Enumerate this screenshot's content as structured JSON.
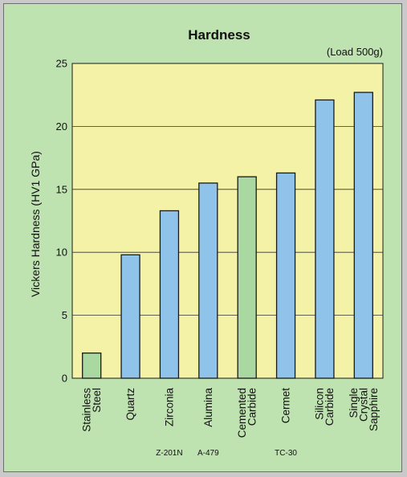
{
  "colors": {
    "background": "#bfe2b1",
    "plot_area": "#f3f2a6",
    "bar_blue": "#8fc3ea",
    "bar_green": "#a9d8a0",
    "outline": "#1a1a1a",
    "gridline": "#333333"
  },
  "chart_data": {
    "type": "bar",
    "title": "Hardness",
    "annotation": "(Load 500g)",
    "ylabel": "Vickers Hardness (HV1 GPa)",
    "xlabel": "",
    "ylim": [
      0,
      25
    ],
    "yticks": [
      "0",
      "5",
      "10",
      "15",
      "20",
      "25"
    ],
    "grid": true,
    "categories": [
      [
        "Stainless",
        "Steel"
      ],
      [
        "Quartz"
      ],
      [
        "Zirconia"
      ],
      [
        "Alumina"
      ],
      [
        "Cemented",
        "Carbide"
      ],
      [
        "Cermet"
      ],
      [
        "Silicon",
        "Carbide"
      ],
      [
        "Single",
        "Crystal",
        "Sapphire"
      ]
    ],
    "grades": [
      "",
      "",
      "Z-201N",
      "A-479",
      "",
      "TC-30",
      "",
      ""
    ],
    "values": [
      2.0,
      9.8,
      13.3,
      15.5,
      16.0,
      16.3,
      22.1,
      22.7
    ],
    "bar_colors": [
      "green",
      "blue",
      "blue",
      "blue",
      "green",
      "blue",
      "blue",
      "blue"
    ]
  }
}
